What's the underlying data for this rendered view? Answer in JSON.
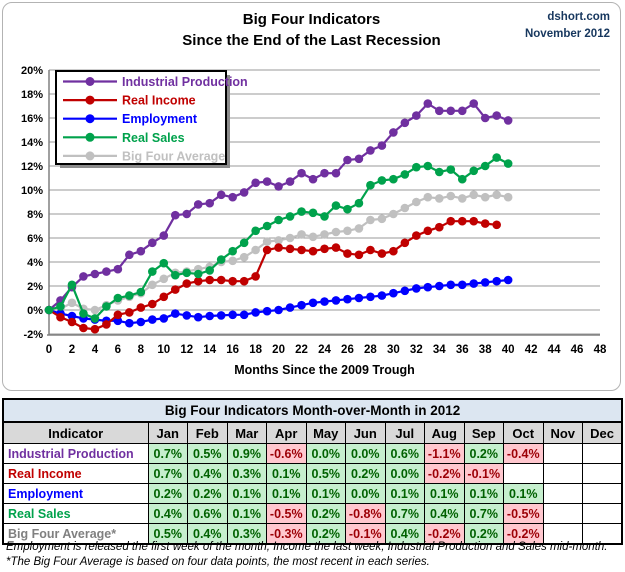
{
  "header": {
    "title_line1": "Big Four Indicators",
    "title_line2": "Since the End of the Last Recession",
    "source": "dshort.com",
    "date": "November 2012",
    "source_color": "#17375e"
  },
  "chart_data": {
    "type": "line",
    "xlabel": "Months Since the 2009 Trough",
    "xlim": [
      0,
      48
    ],
    "x_ticks": [
      0,
      2,
      4,
      6,
      8,
      10,
      12,
      14,
      16,
      18,
      20,
      22,
      24,
      26,
      28,
      30,
      32,
      34,
      36,
      38,
      40,
      42,
      44,
      46,
      48
    ],
    "ylim": [
      -2,
      20
    ],
    "y_ticks": [
      -2,
      0,
      2,
      4,
      6,
      8,
      10,
      12,
      14,
      16,
      18,
      20
    ],
    "y_tick_suffix": "%",
    "grid": true,
    "legend_position": "top-left",
    "x_start": 0,
    "x_step": 1,
    "series": [
      {
        "name": "Industrial Production",
        "color": "#7030a0",
        "values": [
          0.0,
          0.8,
          1.9,
          2.8,
          3.0,
          3.2,
          3.4,
          4.6,
          4.9,
          5.6,
          6.2,
          7.9,
          8.0,
          8.8,
          8.9,
          9.6,
          9.4,
          9.8,
          10.6,
          10.7,
          10.3,
          10.7,
          11.4,
          10.9,
          11.4,
          11.4,
          12.5,
          12.6,
          13.3,
          13.7,
          14.8,
          15.6,
          16.2,
          17.2,
          16.6,
          16.6,
          16.6,
          17.2,
          16.0,
          16.2,
          15.8
        ]
      },
      {
        "name": "Real Income",
        "color": "#c00000",
        "values": [
          0.0,
          -0.6,
          -1.0,
          -1.5,
          -1.6,
          -1.2,
          -0.4,
          -0.2,
          0.2,
          0.5,
          1.1,
          1.7,
          2.2,
          2.4,
          2.5,
          2.5,
          2.4,
          2.4,
          2.8,
          5.0,
          5.2,
          5.1,
          5.0,
          4.9,
          5.1,
          5.2,
          4.7,
          4.6,
          5.0,
          4.7,
          4.9,
          5.6,
          6.2,
          6.6,
          6.9,
          7.4,
          7.4,
          7.4,
          7.2,
          7.1
        ]
      },
      {
        "name": "Employment",
        "color": "#0000ff",
        "values": [
          0.0,
          -0.3,
          -0.5,
          -0.7,
          -0.8,
          -0.9,
          -0.9,
          -1.1,
          -1.0,
          -0.8,
          -0.7,
          -0.3,
          -0.45,
          -0.6,
          -0.5,
          -0.45,
          -0.4,
          -0.4,
          -0.2,
          -0.1,
          0.0,
          0.2,
          0.4,
          0.6,
          0.7,
          0.8,
          0.9,
          1.0,
          1.1,
          1.2,
          1.4,
          1.6,
          1.8,
          1.9,
          2.0,
          2.1,
          2.1,
          2.2,
          2.3,
          2.4,
          2.5
        ]
      },
      {
        "name": "Real Sales",
        "color": "#00a24c",
        "values": [
          0.0,
          0.3,
          2.1,
          -0.3,
          -0.7,
          0.3,
          1.0,
          1.2,
          1.5,
          3.2,
          3.9,
          2.9,
          3.1,
          3.0,
          3.3,
          4.2,
          4.9,
          5.6,
          6.6,
          7.0,
          7.5,
          7.8,
          8.2,
          8.1,
          7.8,
          8.7,
          8.4,
          8.9,
          10.4,
          10.8,
          10.9,
          11.3,
          11.9,
          12.0,
          11.5,
          11.7,
          10.9,
          11.6,
          12.0,
          12.7,
          12.2
        ]
      },
      {
        "name": "Big Four Average",
        "color": "#c0c0c0",
        "values": [
          0.0,
          0.1,
          0.6,
          0.1,
          0.0,
          0.4,
          0.8,
          1.1,
          1.4,
          2.1,
          2.6,
          3.1,
          3.2,
          3.4,
          3.6,
          4.0,
          4.1,
          4.4,
          5.0,
          5.7,
          5.8,
          6.0,
          6.3,
          6.1,
          6.3,
          6.5,
          6.6,
          6.8,
          7.5,
          7.6,
          8.0,
          8.5,
          9.0,
          9.4,
          9.3,
          9.5,
          9.3,
          9.6,
          9.4,
          9.6,
          9.4
        ]
      }
    ]
  },
  "table": {
    "title": "Big Four Indicators Month-over-Month in 2012",
    "indicator_header": "Indicator",
    "months": [
      "Jan",
      "Feb",
      "Mar",
      "Apr",
      "May",
      "Jun",
      "Jul",
      "Aug",
      "Sep",
      "Oct",
      "Nov",
      "Dec"
    ],
    "positive_bg": "#c6efce",
    "positive_text": "#006100",
    "negative_bg": "#ffc7ce",
    "negative_text": "#9c0006",
    "rows": [
      {
        "label": "Industrial Production",
        "color": "#7030a0",
        "values": [
          "0.7%",
          "0.5%",
          "0.9%",
          "-0.6%",
          "0.0%",
          "0.0%",
          "0.6%",
          "-1.1%",
          "0.2%",
          "-0.4%",
          "",
          ""
        ]
      },
      {
        "label": "Real Income",
        "color": "#c00000",
        "values": [
          "0.7%",
          "0.4%",
          "0.3%",
          "0.1%",
          "0.5%",
          "0.2%",
          "0.0%",
          "-0.2%",
          "-0.1%",
          "",
          "",
          ""
        ]
      },
      {
        "label": "Employment",
        "color": "#0000ff",
        "values": [
          "0.2%",
          "0.2%",
          "0.1%",
          "0.1%",
          "0.1%",
          "0.0%",
          "0.1%",
          "0.1%",
          "0.1%",
          "0.1%",
          "",
          ""
        ]
      },
      {
        "label": "Real Sales",
        "color": "#00a24c",
        "values": [
          "0.4%",
          "0.6%",
          "0.1%",
          "-0.5%",
          "0.2%",
          "-0.8%",
          "0.7%",
          "0.4%",
          "0.7%",
          "-0.5%",
          "",
          ""
        ]
      },
      {
        "label": "Big Four Average*",
        "color": "#808080",
        "values": [
          "0.5%",
          "0.4%",
          "0.3%",
          "-0.3%",
          "0.2%",
          "-0.1%",
          "0.4%",
          "-0.2%",
          "0.2%",
          "-0.2%",
          "",
          ""
        ]
      }
    ]
  },
  "footnotes": [
    "Employment is released the first week of the month, Income the last week, Industrial Production and Sales mid-month.",
    "*The Big Four Average is based on four data points, the most recent in each series."
  ]
}
